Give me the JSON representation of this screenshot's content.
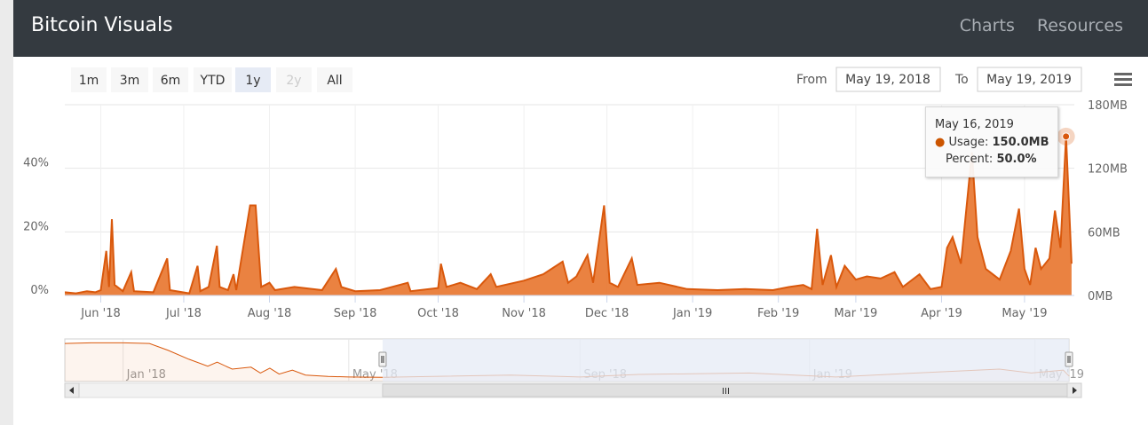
{
  "header": {
    "title": "Bitcoin Visuals",
    "nav": [
      "Charts",
      "Resources"
    ]
  },
  "range_selector": {
    "buttons": [
      {
        "label": "1m",
        "state": "normal"
      },
      {
        "label": "3m",
        "state": "normal"
      },
      {
        "label": "6m",
        "state": "normal"
      },
      {
        "label": "YTD",
        "state": "normal"
      },
      {
        "label": "1y",
        "state": "selected"
      },
      {
        "label": "2y",
        "state": "disabled"
      },
      {
        "label": "All",
        "state": "normal"
      }
    ],
    "from_label": "From",
    "from_value": "May 19, 2018",
    "to_label": "To",
    "to_value": "May 19, 2019"
  },
  "menu_icon": "hamburger-icon",
  "tooltip": {
    "date": "May 16, 2019",
    "usage_label": "Usage: ",
    "usage_value": "150.0MB",
    "percent_label": "Percent: ",
    "percent_value": "50.0%"
  },
  "colors": {
    "series": "#d9580c",
    "fill": "#e8742c",
    "header": "#343a40",
    "navigator_mask": "#e6ebf5"
  },
  "chart_data": {
    "type": "area",
    "x_start": "May 19, 2018",
    "x_end": "May 19, 2019",
    "x_tick_labels": [
      "Jun '18",
      "Jul '18",
      "Aug '18",
      "Sep '18",
      "Oct '18",
      "Nov '18",
      "Dec '18",
      "Jan '19",
      "Feb '19",
      "Mar '19",
      "Apr '19",
      "May '19"
    ],
    "y_left": {
      "ticks": [
        "0%",
        "20%",
        "40%"
      ],
      "range": [
        0,
        60
      ]
    },
    "y_right": {
      "ticks": [
        "0MB",
        "60MB",
        "120MB",
        "180MB"
      ],
      "range": [
        0,
        180
      ]
    },
    "grid": true,
    "series": [
      {
        "name": "Usage",
        "unit": "MB",
        "points": [
          [
            "May 19, 2018",
            3
          ],
          [
            "May 23, 2018",
            2
          ],
          [
            "May 27, 2018",
            4
          ],
          [
            "May 30, 2018",
            3
          ],
          [
            "Jun 1, 2018",
            5
          ],
          [
            "Jun 3, 2018",
            42
          ],
          [
            "Jun 4, 2018",
            8
          ],
          [
            "Jun 5, 2018",
            72
          ],
          [
            "Jun 6, 2018",
            10
          ],
          [
            "Jun 9, 2018",
            4
          ],
          [
            "Jun 12, 2018",
            22
          ],
          [
            "Jun 13, 2018",
            4
          ],
          [
            "Jun 20, 2018",
            3
          ],
          [
            "Jun 25, 2018",
            35
          ],
          [
            "Jun 26, 2018",
            5
          ],
          [
            "Jul 3, 2018",
            2
          ],
          [
            "Jul 6, 2018",
            28
          ],
          [
            "Jul 7, 2018",
            4
          ],
          [
            "Jul 10, 2018",
            8
          ],
          [
            "Jul 13, 2018",
            47
          ],
          [
            "Jul 14, 2018",
            8
          ],
          [
            "Jul 17, 2018",
            5
          ],
          [
            "Jul 19, 2018",
            20
          ],
          [
            "Jul 20, 2018",
            5
          ],
          [
            "Jul 25, 2018",
            85
          ],
          [
            "Jul 27, 2018",
            85
          ],
          [
            "Jul 29, 2018",
            8
          ],
          [
            "Aug 1, 2018",
            12
          ],
          [
            "Aug 3, 2018",
            5
          ],
          [
            "Aug 10, 2018",
            8
          ],
          [
            "Aug 20, 2018",
            5
          ],
          [
            "Aug 25, 2018",
            25
          ],
          [
            "Aug 27, 2018",
            8
          ],
          [
            "Sep 1, 2018",
            4
          ],
          [
            "Sep 10, 2018",
            5
          ],
          [
            "Sep 20, 2018",
            12
          ],
          [
            "Sep 21, 2018",
            4
          ],
          [
            "Oct 1, 2018",
            7
          ],
          [
            "Oct 2, 2018",
            30
          ],
          [
            "Oct 4, 2018",
            8
          ],
          [
            "Oct 9, 2018",
            12
          ],
          [
            "Oct 15, 2018",
            6
          ],
          [
            "Oct 20, 2018",
            20
          ],
          [
            "Oct 22, 2018",
            8
          ],
          [
            "Nov 1, 2018",
            14
          ],
          [
            "Nov 8, 2018",
            20
          ],
          [
            "Nov 15, 2018",
            32
          ],
          [
            "Nov 17, 2018",
            12
          ],
          [
            "Nov 20, 2018",
            18
          ],
          [
            "Nov 24, 2018",
            38
          ],
          [
            "Nov 26, 2018",
            12
          ],
          [
            "Nov 30, 2018",
            85
          ],
          [
            "Dec 2, 2018",
            12
          ],
          [
            "Dec 5, 2018",
            8
          ],
          [
            "Dec 10, 2018",
            35
          ],
          [
            "Dec 12, 2018",
            10
          ],
          [
            "Dec 20, 2018",
            12
          ],
          [
            "Dec 30, 2018",
            6
          ],
          [
            "Jan 10, 2019",
            5
          ],
          [
            "Jan 20, 2019",
            6
          ],
          [
            "Jan 30, 2019",
            5
          ],
          [
            "Feb 5, 2019",
            8
          ],
          [
            "Feb 10, 2019",
            10
          ],
          [
            "Feb 13, 2019",
            6
          ],
          [
            "Feb 15, 2019",
            63
          ],
          [
            "Feb 17, 2019",
            10
          ],
          [
            "Feb 20, 2019",
            38
          ],
          [
            "Feb 22, 2019",
            8
          ],
          [
            "Feb 25, 2019",
            28
          ],
          [
            "Mar 1, 2019",
            15
          ],
          [
            "Mar 5, 2019",
            18
          ],
          [
            "Mar 10, 2019",
            16
          ],
          [
            "Mar 15, 2019",
            22
          ],
          [
            "Mar 18, 2019",
            8
          ],
          [
            "Mar 24, 2019",
            20
          ],
          [
            "Mar 28, 2019",
            6
          ],
          [
            "Apr 1, 2019",
            8
          ],
          [
            "Apr 3, 2019",
            45
          ],
          [
            "Apr 5, 2019",
            55
          ],
          [
            "Apr 8, 2019",
            30
          ],
          [
            "Apr 12, 2019",
            135
          ],
          [
            "Apr 14, 2019",
            55
          ],
          [
            "Apr 17, 2019",
            25
          ],
          [
            "Apr 22, 2019",
            15
          ],
          [
            "Apr 26, 2019",
            42
          ],
          [
            "Apr 29, 2019",
            82
          ],
          [
            "May 1, 2019",
            25
          ],
          [
            "May 3, 2019",
            10
          ],
          [
            "May 5, 2019",
            45
          ],
          [
            "May 7, 2019",
            25
          ],
          [
            "May 10, 2019",
            35
          ],
          [
            "May 12, 2019",
            80
          ],
          [
            "May 14, 2019",
            45
          ],
          [
            "May 16, 2019",
            150
          ],
          [
            "May 18, 2019",
            30
          ]
        ]
      }
    ],
    "navigator": {
      "x_tick_labels": [
        "Jan '18",
        "May '18",
        "Sep '18",
        "Jan '19",
        "May '19"
      ],
      "x_start": "Dec 1, 2017",
      "x_end": "May 19, 2019",
      "points": [
        [
          "Dec 1, 2017",
          175
        ],
        [
          "Dec 15, 2017",
          178
        ],
        [
          "Jan 1, 2018",
          178
        ],
        [
          "Jan 15, 2018",
          175
        ],
        [
          "Jan 25, 2018",
          140
        ],
        [
          "Feb 5, 2018",
          95
        ],
        [
          "Feb 15, 2018",
          60
        ],
        [
          "Feb 20, 2018",
          80
        ],
        [
          "Feb 28, 2018",
          45
        ],
        [
          "Mar 10, 2018",
          55
        ],
        [
          "Mar 15, 2018",
          25
        ],
        [
          "Mar 20, 2018",
          50
        ],
        [
          "Mar 25, 2018",
          20
        ],
        [
          "Apr 1, 2018",
          40
        ],
        [
          "Apr 8, 2018",
          15
        ],
        [
          "Apr 20, 2018",
          8
        ],
        [
          "May 1, 2018",
          5
        ],
        [
          "May 19, 2018",
          3
        ],
        [
          "Jul 26, 2018",
          15
        ],
        [
          "Sep 1, 2018",
          5
        ],
        [
          "Oct 2, 2018",
          18
        ],
        [
          "Nov 30, 2018",
          25
        ],
        [
          "Jan 15, 2019",
          5
        ],
        [
          "Feb 15, 2019",
          20
        ],
        [
          "Apr 12, 2019",
          45
        ],
        [
          "Apr 29, 2019",
          25
        ],
        [
          "May 16, 2019",
          40
        ],
        [
          "May 19, 2019",
          10
        ]
      ]
    }
  }
}
